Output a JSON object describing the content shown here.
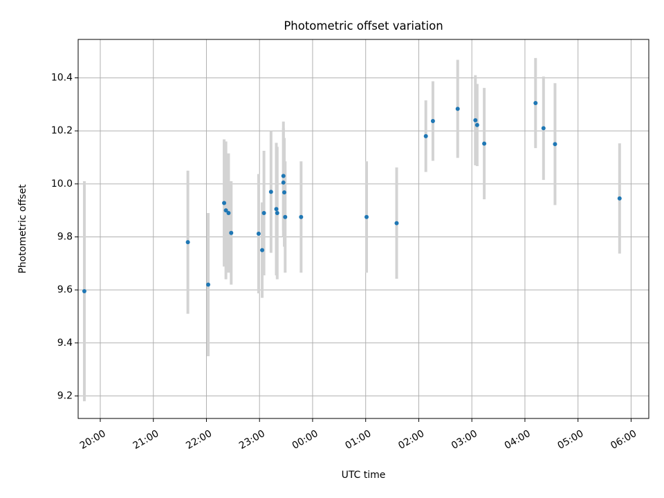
{
  "chart_data": {
    "type": "scatter",
    "title": "Photometric offset variation",
    "xlabel": "UTC time",
    "ylabel": "Photometric offset",
    "grid": true,
    "legend": "none",
    "xlim": [
      "19:35",
      "06:20"
    ],
    "ylim": [
      9.115,
      10.545
    ],
    "x_ticks": [
      "20:00",
      "21:00",
      "22:00",
      "23:00",
      "00:00",
      "01:00",
      "02:00",
      "03:00",
      "04:00",
      "05:00",
      "06:00"
    ],
    "y_ticks": [
      "9.2",
      "9.4",
      "9.6",
      "9.8",
      "10.0",
      "10.2",
      "10.4"
    ],
    "colors": {
      "points": "#1f77b4",
      "errorbars": "#d3d3d3",
      "grid": "#b0b0b0"
    },
    "points": [
      {
        "x": "19:42",
        "y": 9.595,
        "err": 0.415
      },
      {
        "x": "21:39",
        "y": 9.78,
        "err": 0.27
      },
      {
        "x": "22:02",
        "y": 9.62,
        "err": 0.27
      },
      {
        "x": "22:20",
        "y": 9.928,
        "err": 0.24
      },
      {
        "x": "22:22",
        "y": 9.9,
        "err": 0.26
      },
      {
        "x": "22:25",
        "y": 9.89,
        "err": 0.225
      },
      {
        "x": "22:28",
        "y": 9.815,
        "err": 0.195
      },
      {
        "x": "22:59",
        "y": 9.812,
        "err": 0.225
      },
      {
        "x": "23:03",
        "y": 9.75,
        "err": 0.18
      },
      {
        "x": "23:05",
        "y": 9.89,
        "err": 0.235
      },
      {
        "x": "23:13",
        "y": 9.97,
        "err": 0.23
      },
      {
        "x": "23:19",
        "y": 9.905,
        "err": 0.25
      },
      {
        "x": "23:20",
        "y": 9.89,
        "err": 0.25
      },
      {
        "x": "23:27",
        "y": 10.03,
        "err": 0.205
      },
      {
        "x": "23:27",
        "y": 10.005,
        "err": 0.205
      },
      {
        "x": "23:28",
        "y": 9.968,
        "err": 0.205
      },
      {
        "x": "23:29",
        "y": 9.875,
        "err": 0.21
      },
      {
        "x": "23:47",
        "y": 9.875,
        "err": 0.21
      },
      {
        "x": "01:01",
        "y": 9.875,
        "err": 0.21
      },
      {
        "x": "01:35",
        "y": 9.852,
        "err": 0.21
      },
      {
        "x": "02:08",
        "y": 10.18,
        "err": 0.135
      },
      {
        "x": "02:16",
        "y": 10.237,
        "err": 0.15
      },
      {
        "x": "02:44",
        "y": 10.283,
        "err": 0.185
      },
      {
        "x": "03:04",
        "y": 10.24,
        "err": 0.17
      },
      {
        "x": "03:06",
        "y": 10.222,
        "err": 0.155
      },
      {
        "x": "03:14",
        "y": 10.152,
        "err": 0.21
      },
      {
        "x": "04:12",
        "y": 10.305,
        "err": 0.17
      },
      {
        "x": "04:21",
        "y": 10.21,
        "err": 0.195
      },
      {
        "x": "04:34",
        "y": 10.15,
        "err": 0.23
      },
      {
        "x": "05:47",
        "y": 9.945,
        "err": 0.208
      }
    ]
  }
}
